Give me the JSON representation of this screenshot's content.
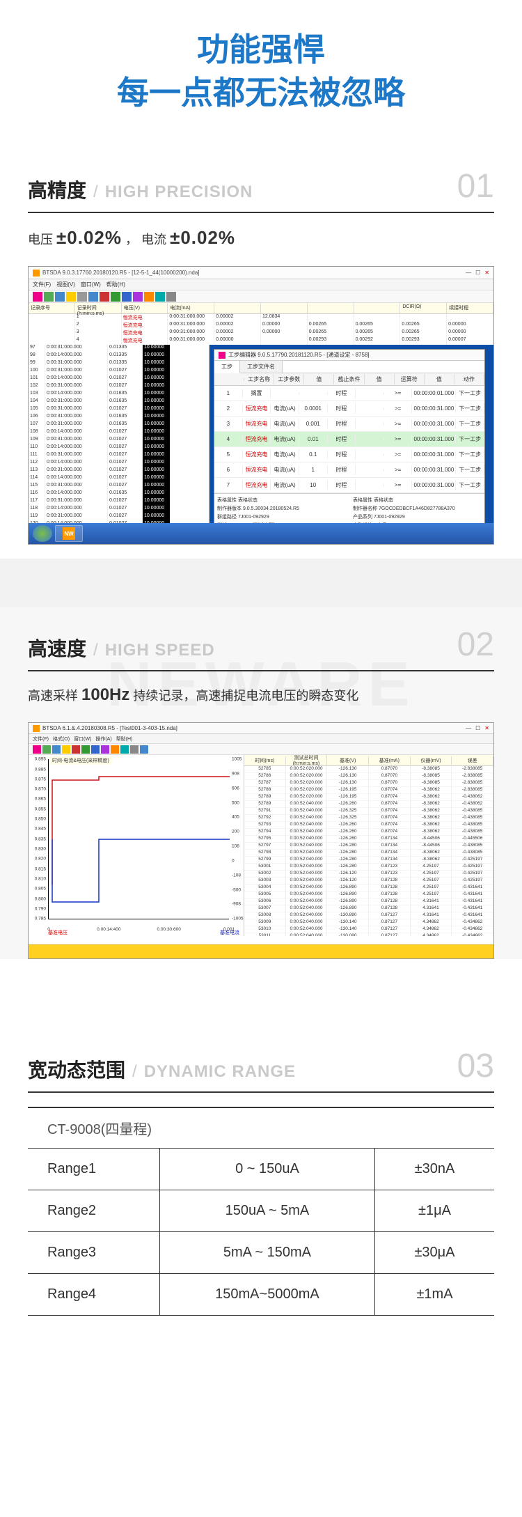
{
  "hero": {
    "line1": "功能强悍",
    "line2": "每一点都无法被忽略",
    "color": "#1e78c8"
  },
  "section1": {
    "title_cn": "高精度",
    "title_en": "HIGH PRECISION",
    "num": "01",
    "spec_prefix1": "电压",
    "spec_val1": "±0.02%",
    "spec_sep": "，",
    "spec_prefix2": "电流",
    "spec_val2": "±0.02%",
    "screenshot": {
      "window_title": "BTSDA 9.0.3.17760.20180120.R5 - [12-5-1_44(10000200).nda]",
      "menus": [
        "文件(F)",
        "视图(V)",
        "窗口(W)",
        "帮助(H)"
      ],
      "header_cols": [
        "记录序号",
        "记录时间(h:min:s.ms)",
        "电压(V)",
        "电流(mA)",
        "",
        "",
        "",
        "",
        "DCIR(Ω)",
        "续接时程"
      ],
      "top_rows": [
        [
          "",
          "1",
          "恒流充电",
          "0:00:31:000.000",
          "0.00002",
          "12.0834",
          "",
          "",
          "",
          ""
        ],
        [
          "",
          "2",
          "恒流充电",
          "0:00:31:000.000",
          "0.00002",
          "0.00000",
          "0.00265",
          "0.00265",
          "0.00265",
          "0.00000"
        ],
        [
          "",
          "3",
          "恒流充电",
          "0:00:31:000.000",
          "0.00002",
          "0.00000",
          "0.00265",
          "0.00265",
          "0.00265",
          "0.00000"
        ],
        [
          "",
          "4",
          "恒流充电",
          "0:00:31:000.000",
          "0.00000",
          "",
          "0.00293",
          "0.00292",
          "0.00293",
          "0.00007"
        ]
      ],
      "left_rows": [
        [
          "97",
          "0:00:31:000.000",
          "0.01335",
          "10.00000"
        ],
        [
          "98",
          "0:00:14:000.000",
          "0.01335",
          "10.00000"
        ],
        [
          "99",
          "0:00:31:000.000",
          "0.01335",
          "10.00000"
        ],
        [
          "100",
          "0:00:31:000.000",
          "0.01027",
          "10.00000"
        ],
        [
          "101",
          "0:00:14:000.000",
          "0.01027",
          "10.00000"
        ],
        [
          "102",
          "0:00:31:000.000",
          "0.01027",
          "10.00000"
        ],
        [
          "103",
          "0:00:14:000.000",
          "0.01635",
          "10.00000"
        ],
        [
          "104",
          "0:00:31:000.000",
          "0.01635",
          "10.00000"
        ],
        [
          "105",
          "0:00:31:000.000",
          "0.01027",
          "10.00000"
        ],
        [
          "106",
          "0:00:31:000.000",
          "0.01635",
          "10.00000"
        ],
        [
          "107",
          "0:00:31:000.000",
          "0.01635",
          "10.00000"
        ],
        [
          "108",
          "0:00:14:000.000",
          "0.01027",
          "10.00000"
        ],
        [
          "109",
          "0:00:31:000.000",
          "0.01027",
          "10.00000"
        ],
        [
          "110",
          "0:00:14:000.000",
          "0.01027",
          "10.00000"
        ],
        [
          "111",
          "0:00:31:000.000",
          "0.01027",
          "10.00000"
        ],
        [
          "112",
          "0:00:14:000.000",
          "0.01027",
          "10.00000"
        ],
        [
          "113",
          "0:00:31:000.000",
          "0.01027",
          "10.00000"
        ],
        [
          "114",
          "0:00:14:000.000",
          "0.01027",
          "10.00000"
        ],
        [
          "115",
          "0:00:31:000.000",
          "0.01027",
          "10.00000"
        ],
        [
          "116",
          "0:00:14:000.000",
          "0.01635",
          "10.00000"
        ],
        [
          "117",
          "0:00:31:000.000",
          "0.01027",
          "10.00000"
        ],
        [
          "118",
          "0:00:14:000.000",
          "0.01027",
          "10.00000"
        ],
        [
          "119",
          "0:00:31:000.000",
          "0.01027",
          "10.00000"
        ],
        [
          "120",
          "0:00:14:000.000",
          "0.01027",
          "10.00000"
        ],
        [
          "121",
          "0:00:31:000.000",
          "0.01027",
          "10.00000"
        ],
        [
          "122",
          "0:00:14:000.000",
          "0.01027",
          "10.00000"
        ],
        [
          "123",
          "0:00:31:000.000",
          "0.01027",
          "10.00000"
        ],
        [
          "124",
          "0:00:31:001.000",
          "0.01027",
          "10.00000"
        ],
        [
          "125",
          "0:00:29:000.000",
          "0.01027",
          "0.00007"
        ],
        [
          "",
          "恒流充电",
          "0:00:31:000.000",
          "0.00027",
          ""
        ]
      ],
      "popup_title": "工步编辑器 9.0.5.17790.20181120.R5 - [通道设定 - 8758]",
      "popup_tabs": [
        "工步",
        "工步文件名"
      ],
      "step_cols": [
        "",
        "工步名称",
        "工步参数",
        "值",
        "截止条件",
        "值",
        "运算符",
        "值",
        "动作"
      ],
      "step_rows": [
        {
          "n": "1",
          "name": "搁置",
          "p": "",
          "v": "",
          "c": "时程",
          "cv": "",
          "op": ">=",
          "ov": "00:00:00:01.000",
          "a": "下一工步",
          "hl": false
        },
        {
          "n": "2",
          "name": "恒流充电",
          "p": "电流(uA)",
          "v": "0.0001",
          "c": "时程",
          "cv": "",
          "op": ">=",
          "ov": "00:00:00:31.000",
          "a": "下一工步",
          "hl": false
        },
        {
          "n": "3",
          "name": "恒流充电",
          "p": "电流(uA)",
          "v": "0.001",
          "c": "时程",
          "cv": "",
          "op": ">=",
          "ov": "00:00:00:31.000",
          "a": "下一工步",
          "hl": false
        },
        {
          "n": "4",
          "name": "恒流充电",
          "p": "电流(uA)",
          "v": "0.01",
          "c": "时程",
          "cv": "",
          "op": ">=",
          "ov": "00:00:00:31.000",
          "a": "下一工步",
          "hl": true
        },
        {
          "n": "5",
          "name": "恒流充电",
          "p": "电流(uA)",
          "v": "0.1",
          "c": "时程",
          "cv": "",
          "op": ">=",
          "ov": "00:00:00:31.000",
          "a": "下一工步",
          "hl": false
        },
        {
          "n": "6",
          "name": "恒流充电",
          "p": "电流(uA)",
          "v": "1",
          "c": "时程",
          "cv": "",
          "op": ">=",
          "ov": "00:00:00:31.000",
          "a": "下一工步",
          "hl": false
        },
        {
          "n": "7",
          "name": "恒流充电",
          "p": "电流(uA)",
          "v": "10",
          "c": "时程",
          "cv": "",
          "op": ">=",
          "ov": "00:00:00:31.000",
          "a": "下一工步",
          "hl": false
        }
      ],
      "popup_info_left": [
        [
          "表格属性",
          "表格状态"
        ],
        [
          "制作器版本",
          "9.0.5.30034.20180524.R5"
        ],
        [
          "群组路径",
          "7J001-092929"
        ],
        [
          "测试ID",
          "8525-1-0[测试步骤]"
        ],
        [
          "工步创建者",
          "admin"
        ],
        [
          "测试开始时间",
          "2018/6/18 9:30:41"
        ],
        [
          "最大数据项号",
          "99"
        ],
        [
          "托盘条码",
          ""
        ]
      ],
      "popup_info_right": [
        [
          "表格属性",
          "表格状态"
        ],
        [
          "制作器名称",
          "7GOCDEDBCF1A46D827788A370"
        ],
        [
          "产品系列",
          "7J001-092929"
        ],
        [
          "启动起始工步号",
          "2"
        ],
        [
          "测试通知过",
          "64"
        ],
        [
          "测试上传时间",
          "2018-06-18 09-30-47"
        ],
        [
          "主通信号码",
          ""
        ]
      ]
    }
  },
  "section2": {
    "title_cn": "高速度",
    "title_en": "HIGH SPEED",
    "num": "02",
    "watermark": "NEWARE",
    "spec_prefix": "高速采样",
    "spec_val": "100Hz",
    "spec_suffix": "持续记录，高速捕捉电流电压的瞬态变化",
    "screenshot": {
      "window_title": "BTSDA 6.1.&.4.20180308.R5 - [Test001-3-403-15.nda]",
      "menus": [
        "文件(F)",
        "格式(O)",
        "窗口(W)",
        "操作(A)",
        "帮助(H)"
      ],
      "chart_title": "时间-电流&电压(采样精度)",
      "chart": {
        "xlim": [
          0,
          0.002
        ],
        "xticks": [
          "0",
          "0.00:14:400",
          "0.00:30:600",
          "0.001"
        ],
        "ylim_v": [
          0.785,
          0.895
        ],
        "yticks_v": [
          "0.895",
          "0.885",
          "0.875",
          "0.870",
          "0.865",
          "0.855",
          "0.850",
          "0.845",
          "0.835",
          "0.830",
          "0.820",
          "0.815",
          "0.810",
          "0.805",
          "0.800",
          "0.790",
          "0.785"
        ],
        "ylim_i": [
          -1005,
          1005
        ],
        "yticks_i": [
          "1005",
          "908",
          "606",
          "500",
          "405",
          "200",
          "108",
          "0",
          "-108",
          "-500",
          "-908",
          "-1005"
        ],
        "red_line_color": "#d01217",
        "blue_line_color": "#1236c4",
        "legend_l": "基准电压",
        "legend_r": "基准电流",
        "red_path_pts": [
          [
            5,
            180
          ],
          [
            5,
            30
          ],
          [
            72,
            30
          ],
          [
            72,
            25
          ],
          [
            260,
            25
          ]
        ],
        "blue_path_pts": [
          [
            5,
            115
          ],
          [
            5,
            205
          ],
          [
            72,
            205
          ],
          [
            72,
            115
          ],
          [
            260,
            115
          ]
        ]
      },
      "data_cols": [
        "时间(ms)",
        "测试总时间(h:min:s.ms)",
        "基准(V)",
        "基准(mA)",
        "仪器(mV)",
        "误差"
      ],
      "data_rows": [
        [
          "52785",
          "0:00:52:020.000",
          "-126.130",
          "0.87070",
          "-8.38085",
          "-2.838085"
        ],
        [
          "52786",
          "0:00:52:020.000",
          "-126.130",
          "0.87070",
          "-8.38085",
          "-2.838085"
        ],
        [
          "52787",
          "0:00:52:020.000",
          "-126.130",
          "0.87070",
          "-8.38085",
          "-2.838085"
        ],
        [
          "52788",
          "0:00:52:020.000",
          "-126.195",
          "0.87074",
          "-8.38062",
          "-2.838085"
        ],
        [
          "52789",
          "0:00:52:020.000",
          "-126.195",
          "0.87074",
          "-8.38062",
          "-0.438062"
        ],
        [
          "52789",
          "0:00:52:040.000",
          "-126.260",
          "0.87074",
          "-8.38062",
          "-0.438062"
        ],
        [
          "52791",
          "0:00:52:040.000",
          "-126.325",
          "0.87074",
          "-8.38062",
          "-0.438085"
        ],
        [
          "52792",
          "0:00:52:040.000",
          "-126.325",
          "0.87074",
          "-8.38062",
          "-0.438085"
        ],
        [
          "52793",
          "0:00:52:040.000",
          "-126.260",
          "0.87074",
          "-8.38062",
          "-0.438085"
        ],
        [
          "52794",
          "0:00:52:040.000",
          "-126.260",
          "0.87074",
          "-8.38062",
          "-0.438085"
        ],
        [
          "52795",
          "0:00:52:040.000",
          "-126.260",
          "0.87134",
          "-8.44506",
          "-0.445506"
        ],
        [
          "52797",
          "0:00:52:040.000",
          "-126.280",
          "0.87134",
          "-8.44506",
          "-0.438085"
        ],
        [
          "52798",
          "0:00:52:040.000",
          "-126.280",
          "0.87134",
          "-8.38062",
          "-0.438085"
        ],
        [
          "52799",
          "0:00:52:040.000",
          "-126.280",
          "0.87134",
          "-8.38062",
          "-0.425197"
        ],
        [
          "53001",
          "0:00:52:040.000",
          "-126.280",
          "0.87123",
          "4.25197",
          "-0.425197"
        ],
        [
          "53002",
          "0:00:52:040.000",
          "-126.120",
          "0.87123",
          "4.25197",
          "-0.425197"
        ],
        [
          "53003",
          "0:00:52:040.000",
          "-126.120",
          "0.87128",
          "4.25197",
          "-0.425197"
        ],
        [
          "53004",
          "0:00:52:040.000",
          "-126.890",
          "0.87128",
          "4.25197",
          "-0.431641"
        ],
        [
          "53005",
          "0:00:52:040.000",
          "-126.890",
          "0.87128",
          "4.25197",
          "-0.431641"
        ],
        [
          "53006",
          "0:00:52:040.000",
          "-126.890",
          "0.87128",
          "4.31641",
          "-0.431641"
        ],
        [
          "53007",
          "0:00:52:040.000",
          "-126.890",
          "0.87128",
          "4.31641",
          "-0.431641"
        ],
        [
          "53008",
          "0:00:52:040.000",
          "-130.890",
          "0.87127",
          "4.31641",
          "-0.431641"
        ],
        [
          "53009",
          "0:00:52:040.000",
          "-130.140",
          "0.87127",
          "4.34862",
          "-0.434862"
        ],
        [
          "53010",
          "0:00:52:040.000",
          "-130.140",
          "0.87127",
          "4.34862",
          "-0.434862"
        ],
        [
          "53011",
          "0:00:52:040.000",
          "-130.080",
          "0.87127",
          "4.34862",
          "-0.434862"
        ],
        [
          "53012",
          "0:00:52:040.000",
          "-130.080",
          "0.87127",
          "4.34862",
          "-0.434862"
        ]
      ]
    }
  },
  "section3": {
    "title_cn": "宽动态范围",
    "title_en": "DYNAMIC RANGE",
    "num": "03",
    "model": "CT-9008(四量程)",
    "ranges": [
      {
        "name": "Range1",
        "span": "0 ~ 150uA",
        "acc": "±30nA"
      },
      {
        "name": "Range2",
        "span": "150uA ~ 5mA",
        "acc": "±1μA"
      },
      {
        "name": "Range3",
        "span": "5mA ~ 150mA",
        "acc": "±30μA"
      },
      {
        "name": "Range4",
        "span": "150mA~5000mA",
        "acc": "±1mA"
      }
    ]
  }
}
